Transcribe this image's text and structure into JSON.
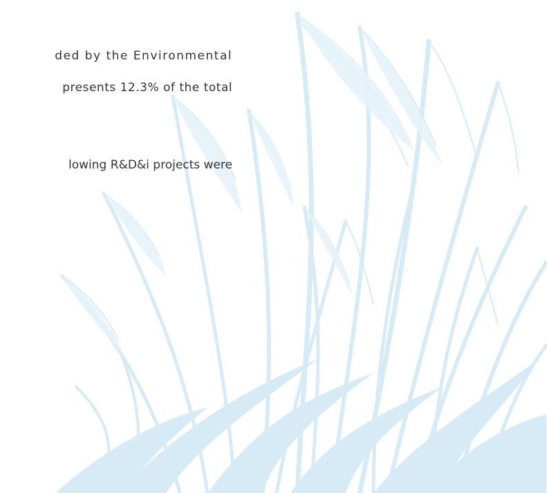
{
  "document": {
    "lines": [
      "ded by the Environmental",
      "presents 12.3% of the total",
      "lowing R&D&i projects were"
    ]
  },
  "decoration": {
    "grass_color": "#d6ebf6",
    "text_color": "#333333"
  }
}
